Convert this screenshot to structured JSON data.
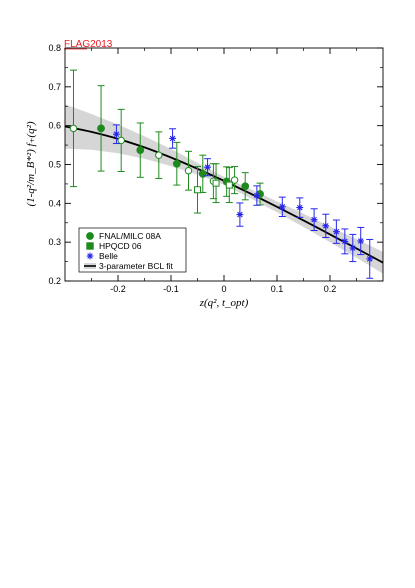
{
  "stamp": {
    "text": "FLAG2013",
    "color": "#ee1c24"
  },
  "chart_data": {
    "type": "scatter",
    "xlabel": "z(q², t_opt)",
    "ylabel": "(1-q²/m_B*²) f₊(q²)",
    "xlim": [
      -0.3,
      0.3
    ],
    "ylim": [
      0.2,
      0.8
    ],
    "x_ticks": [
      -0.2,
      -0.1,
      0,
      0.1,
      0.2
    ],
    "x_tick_labels": [
      "-0.2",
      "-0.1",
      "0",
      "0.1",
      "0.2"
    ],
    "y_ticks": [
      0.2,
      0.3,
      0.4,
      0.5,
      0.6,
      0.7,
      0.8
    ],
    "y_tick_labels": [
      "0.2",
      "0.3",
      "0.4",
      "0.5",
      "0.6",
      "0.7",
      "0.8"
    ],
    "grid": false,
    "legend_position": "bottom-left",
    "colors": {
      "green": "#1e8a1e",
      "blue": "#2626ee",
      "band": "#d6d6d6",
      "fit": "#000000"
    },
    "series": [
      {
        "name": "FNAL/MILC 08A",
        "marker": "filled-circle",
        "color": "#1e8a1e",
        "points": [
          {
            "x": -0.232,
            "y": 0.593,
            "err": 0.11
          },
          {
            "x": -0.158,
            "y": 0.537,
            "err": 0.07
          },
          {
            "x": -0.089,
            "y": 0.502,
            "err": 0.055
          },
          {
            "x": -0.04,
            "y": 0.476,
            "err": 0.048
          },
          {
            "x": 0.005,
            "y": 0.456,
            "err": 0.038
          },
          {
            "x": 0.04,
            "y": 0.444,
            "err": 0.035
          },
          {
            "x": 0.068,
            "y": 0.424,
            "err": 0.028
          }
        ]
      },
      {
        "name": "FNAL/MILC 08A (open)",
        "marker": "open-circle",
        "color": "#1e8a1e",
        "points": [
          {
            "x": -0.284,
            "y": 0.593,
            "err": 0.15
          },
          {
            "x": -0.194,
            "y": 0.562,
            "err": 0.08
          },
          {
            "x": -0.123,
            "y": 0.524,
            "err": 0.06
          },
          {
            "x": -0.067,
            "y": 0.484,
            "err": 0.05
          },
          {
            "x": -0.02,
            "y": 0.457,
            "err": 0.045
          },
          {
            "x": 0.02,
            "y": 0.46,
            "err": 0.035
          }
        ]
      },
      {
        "name": "HPQCD 06",
        "marker": "open-square",
        "color": "#1e8a1e",
        "points": [
          {
            "x": -0.05,
            "y": 0.435,
            "err": 0.06
          },
          {
            "x": -0.015,
            "y": 0.452,
            "err": 0.05
          },
          {
            "x": 0.01,
            "y": 0.447,
            "err": 0.045
          }
        ]
      },
      {
        "name": "Belle",
        "marker": "star",
        "color": "#2626ee",
        "points": [
          {
            "x": -0.203,
            "y": 0.578,
            "err": 0.024
          },
          {
            "x": -0.097,
            "y": 0.567,
            "err": 0.025
          },
          {
            "x": -0.031,
            "y": 0.493,
            "err": 0.022
          },
          {
            "x": 0.03,
            "y": 0.371,
            "err": 0.03
          },
          {
            "x": 0.062,
            "y": 0.42,
            "err": 0.025
          },
          {
            "x": 0.11,
            "y": 0.391,
            "err": 0.025
          },
          {
            "x": 0.143,
            "y": 0.389,
            "err": 0.025
          },
          {
            "x": 0.17,
            "y": 0.358,
            "err": 0.028
          },
          {
            "x": 0.192,
            "y": 0.342,
            "err": 0.03
          },
          {
            "x": 0.212,
            "y": 0.327,
            "err": 0.03
          },
          {
            "x": 0.228,
            "y": 0.302,
            "err": 0.032
          },
          {
            "x": 0.243,
            "y": 0.285,
            "err": 0.035
          },
          {
            "x": 0.258,
            "y": 0.303,
            "err": 0.035
          },
          {
            "x": 0.275,
            "y": 0.257,
            "err": 0.05
          }
        ]
      }
    ],
    "fit": {
      "name": "3-parameter BCL fit",
      "x": [
        -0.3,
        -0.25,
        -0.2,
        -0.15,
        -0.1,
        -0.05,
        0.0,
        0.05,
        0.1,
        0.15,
        0.2,
        0.25,
        0.3
      ],
      "y": [
        0.598,
        0.584,
        0.566,
        0.544,
        0.518,
        0.489,
        0.458,
        0.425,
        0.391,
        0.356,
        0.32,
        0.284,
        0.247
      ],
      "upper": [
        0.655,
        0.63,
        0.603,
        0.573,
        0.54,
        0.504,
        0.468,
        0.437,
        0.405,
        0.373,
        0.34,
        0.308,
        0.275
      ],
      "lower": [
        0.541,
        0.538,
        0.529,
        0.515,
        0.496,
        0.474,
        0.448,
        0.413,
        0.377,
        0.339,
        0.3,
        0.26,
        0.219
      ]
    },
    "legend": [
      {
        "label": "FNAL/MILC 08A",
        "marker": "filled-circle",
        "color": "#1e8a1e"
      },
      {
        "label": "HPQCD 06",
        "marker": "filled-square",
        "color": "#1e8a1e"
      },
      {
        "label": "Belle",
        "marker": "star",
        "color": "#2626ee"
      },
      {
        "label": "3-parameter BCL fit",
        "marker": "band-line",
        "color": "#000000"
      }
    ]
  }
}
